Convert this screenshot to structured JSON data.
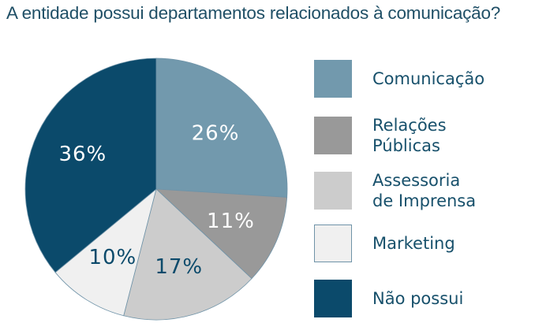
{
  "title": "A entidade possui departamentos relacionados à comunicação?",
  "chart_data": {
    "type": "pie",
    "title": "A entidade possui departamentos relacionados à comunicação?",
    "categories": [
      "Comunicação",
      "Relações Públicas",
      "Assessoria de Imprensa",
      "Marketing",
      "Não possui"
    ],
    "values": [
      26,
      11,
      17,
      10,
      36
    ],
    "labels": [
      "26%",
      "11%",
      "17%",
      "10%",
      "36%"
    ],
    "unit": "%",
    "colors": [
      "#7299ad",
      "#999999",
      "#cccccc",
      "#f0f0f0",
      "#0b4a6b"
    ],
    "label_colors": [
      "#ffffff",
      "#ffffff",
      "#0b4a6b",
      "#0b4a6b",
      "#ffffff"
    ],
    "start_angle_deg": 0,
    "direction": "clockwise",
    "legend_position": "right"
  },
  "legend": {
    "items": [
      {
        "lines": [
          "Comunicação"
        ],
        "color": "#7299ad"
      },
      {
        "lines": [
          "Relações",
          "Públicas"
        ],
        "color": "#999999"
      },
      {
        "lines": [
          "Assessoria",
          "de Imprensa"
        ],
        "color": "#cccccc"
      },
      {
        "lines": [
          "Marketing"
        ],
        "color": "#f0f0f0",
        "border": "#6f93a8"
      },
      {
        "lines": [
          "Não possui"
        ],
        "color": "#0b4a6b"
      }
    ]
  }
}
